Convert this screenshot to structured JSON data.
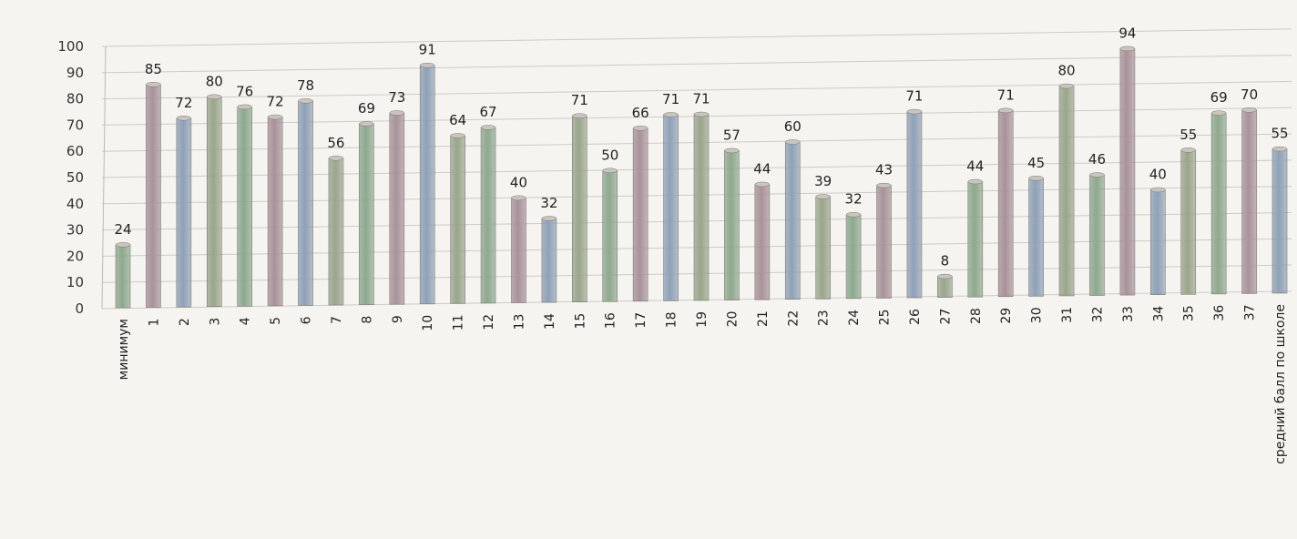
{
  "chart_data": {
    "type": "bar",
    "title": "",
    "xlabel": "",
    "ylabel": "",
    "ylim": [
      0,
      100
    ],
    "yticks": [
      0,
      10,
      20,
      30,
      40,
      50,
      60,
      70,
      80,
      90,
      100
    ],
    "grid": true,
    "style": "3d-cylinder",
    "categories": [
      "минимум",
      "1",
      "2",
      "3",
      "4",
      "5",
      "6",
      "7",
      "8",
      "9",
      "10",
      "11",
      "12",
      "13",
      "14",
      "15",
      "16",
      "17",
      "18",
      "19",
      "20",
      "21",
      "22",
      "23",
      "24",
      "25",
      "26",
      "27",
      "28",
      "29",
      "30",
      "31",
      "32",
      "33",
      "34",
      "35",
      "36",
      "37",
      "средний балл по школе"
    ],
    "series": [
      {
        "values": [
          24,
          85,
          72,
          80,
          76,
          72,
          78,
          56,
          69,
          73,
          91,
          64,
          67,
          40,
          32,
          71,
          50,
          66,
          71,
          71,
          57,
          44,
          60,
          39,
          32,
          43,
          71,
          8,
          44,
          71,
          45,
          80,
          46,
          94,
          40,
          55,
          69,
          70,
          55
        ]
      }
    ],
    "colors": [
      "#8ea88e",
      "#a8929a",
      "#8fa1b6",
      "#9aa58c"
    ]
  }
}
